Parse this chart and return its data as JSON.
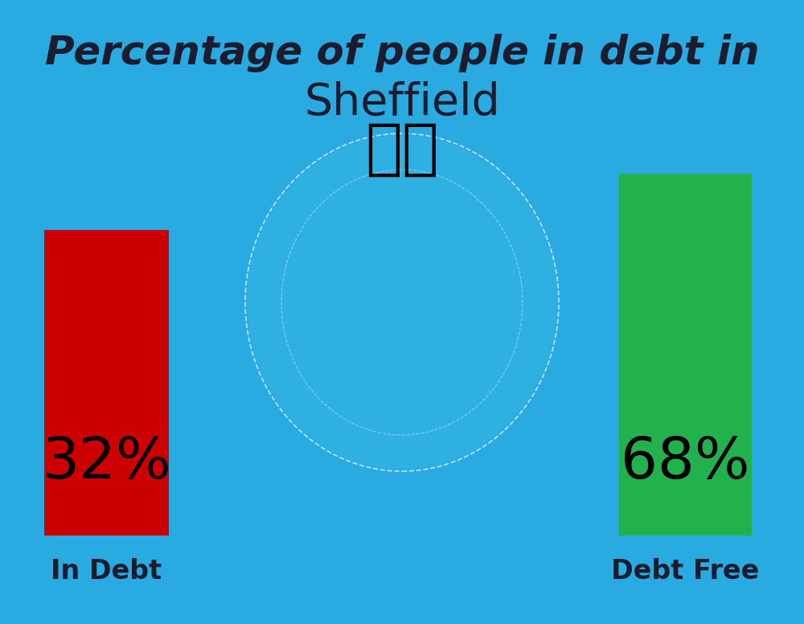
{
  "background_color": "#29ABE2",
  "title_line1": "Percentage of people in debt in",
  "title_line2": "Sheffield",
  "title_fontsize": 36,
  "title_color": "#1C1C2E",
  "title_fontweight": "bold",
  "sheffield_fontsize": 40,
  "bar1_label": "32%",
  "bar1_color": "#CC0000",
  "bar1_xlabel": "In Debt",
  "bar2_label": "68%",
  "bar2_color": "#22B14C",
  "bar2_xlabel": "Debt Free",
  "bar_label_fontsize": 52,
  "bar_xlabel_fontsize": 24,
  "bar_xlabel_color": "#1C1C2E",
  "bar_xlabel_fontweight": "bold",
  "bar_label_color": "#000000",
  "flag_emoji": "🇬🇧",
  "flag_fontsize": 55
}
